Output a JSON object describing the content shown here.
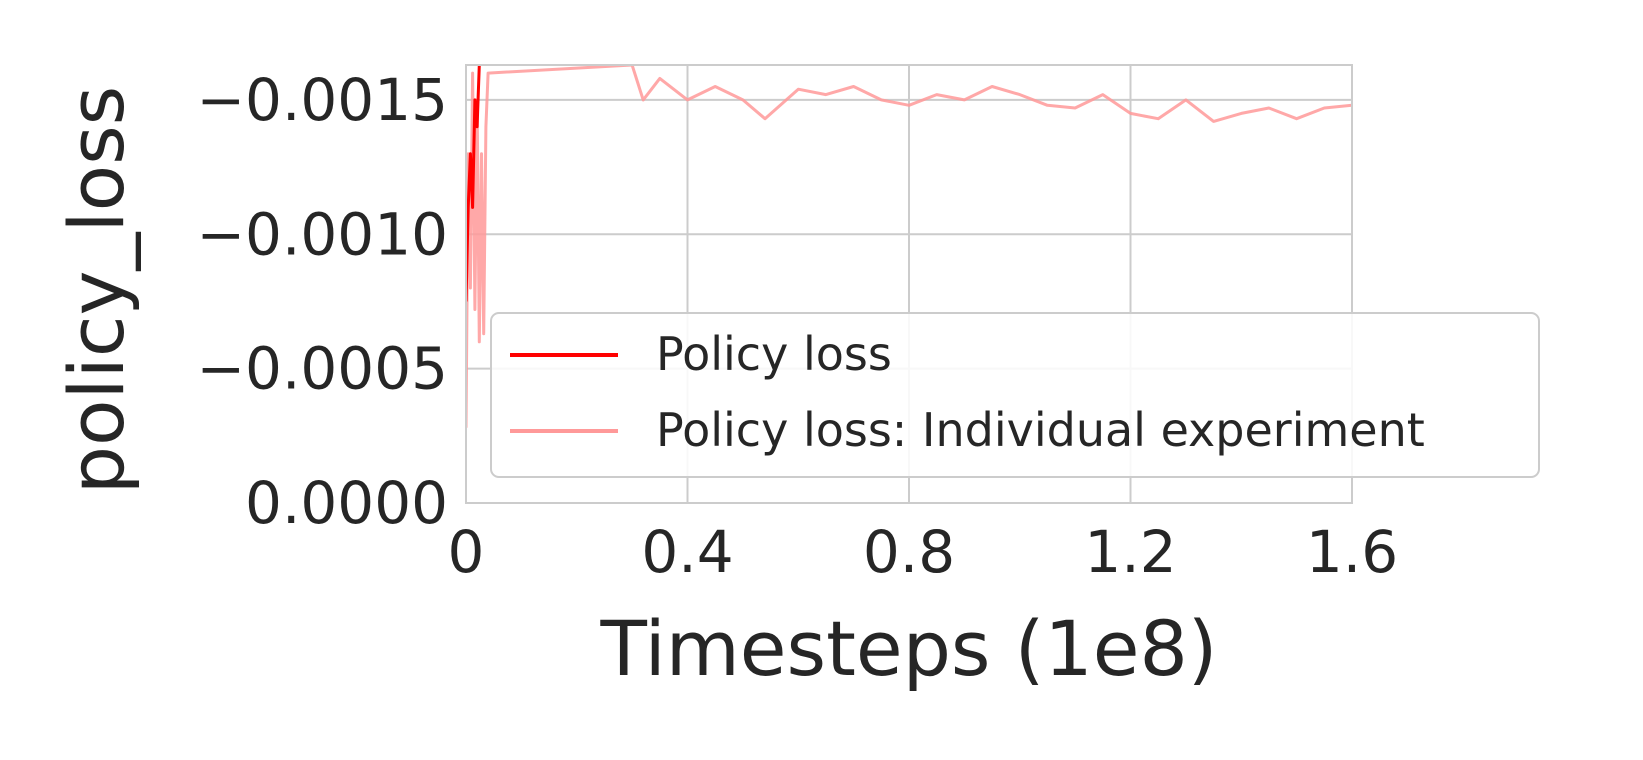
{
  "chart_data": {
    "type": "line",
    "title": "",
    "xlabel": "Timesteps (1e8)",
    "ylabel": "policy_loss",
    "xlim": [
      0,
      1.6
    ],
    "ylim": [
      0.0,
      0.00163
    ],
    "y_inverted": true,
    "xticks": [
      0,
      0.4,
      0.8,
      1.2,
      1.6
    ],
    "xtick_labels": [
      "0",
      "0.4",
      "0.8",
      "1.2",
      "1.6"
    ],
    "yticks": [
      0.0,
      -0.0005,
      -0.001,
      -0.0015
    ],
    "ytick_labels": [
      "0.0000",
      "−0.0005",
      "−0.0010",
      "−0.0015"
    ],
    "grid": true,
    "legend_position": "lower-right",
    "series": [
      {
        "name": "Policy loss",
        "color": "#ff0000",
        "x": [
          0.0,
          0.004,
          0.008,
          0.012,
          0.016,
          0.02,
          0.024
        ],
        "y": [
          -0.00075,
          -0.0011,
          -0.0013,
          -0.0011,
          -0.0015,
          -0.0014,
          -0.00163
        ]
      },
      {
        "name": "Policy loss: Individual experiment",
        "color": "#ff9999",
        "x": [
          0.0,
          0.004,
          0.008,
          0.012,
          0.016,
          0.02,
          0.024,
          0.028,
          0.032,
          0.036,
          0.04,
          0.3,
          0.32,
          0.35,
          0.4,
          0.45,
          0.5,
          0.54,
          0.6,
          0.65,
          0.7,
          0.75,
          0.8,
          0.85,
          0.9,
          0.95,
          1.0,
          1.05,
          1.1,
          1.15,
          1.2,
          1.25,
          1.3,
          1.35,
          1.4,
          1.45,
          1.5,
          1.55,
          1.6
        ],
        "y": [
          -0.00028,
          -0.0013,
          -0.0008,
          -0.0016,
          -0.00072,
          -0.0015,
          -0.0006,
          -0.0013,
          -0.00063,
          -0.0014,
          -0.0016,
          -0.00163,
          -0.0015,
          -0.00158,
          -0.0015,
          -0.00155,
          -0.0015,
          -0.00143,
          -0.00154,
          -0.00152,
          -0.00155,
          -0.0015,
          -0.00148,
          -0.00152,
          -0.0015,
          -0.00155,
          -0.00152,
          -0.00148,
          -0.00147,
          -0.00152,
          -0.00145,
          -0.00143,
          -0.0015,
          -0.00142,
          -0.00145,
          -0.00147,
          -0.00143,
          -0.00147,
          -0.00148
        ]
      }
    ]
  }
}
